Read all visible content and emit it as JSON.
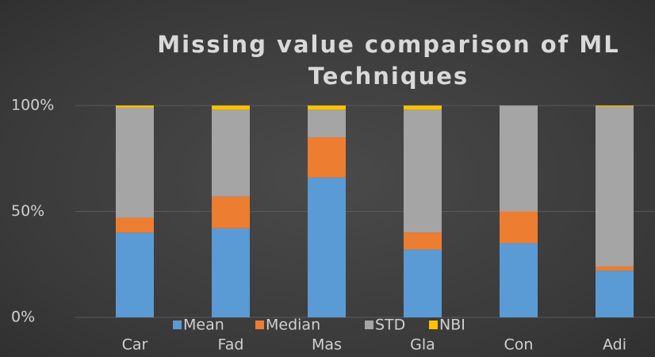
{
  "chart_data": {
    "type": "stacked_bar",
    "title": "Missing value comparison of ML Techniques",
    "categories": [
      "Car",
      "Fad",
      "Mas",
      "Gla",
      "Con",
      "Adi"
    ],
    "series": [
      {
        "name": "Mean",
        "color": "#5b9bd5",
        "values": [
          40,
          42,
          66,
          32,
          35,
          22
        ]
      },
      {
        "name": "Median",
        "color": "#ed7d31",
        "values": [
          7,
          15,
          19,
          8,
          15,
          2
        ]
      },
      {
        "name": "STD",
        "color": "#a5a5a5",
        "values": [
          52,
          41,
          13,
          58,
          50,
          75.5
        ]
      },
      {
        "name": "NBI",
        "color": "#ffc000",
        "values": [
          1,
          2,
          2,
          2,
          0,
          0.5
        ]
      }
    ],
    "ylim": [
      0,
      100
    ],
    "yticks": [
      {
        "value": 0,
        "label": "0%"
      },
      {
        "value": 50,
        "label": "50%"
      },
      {
        "value": 100,
        "label": "100%"
      }
    ],
    "grid": true,
    "legend": "bottom"
  }
}
